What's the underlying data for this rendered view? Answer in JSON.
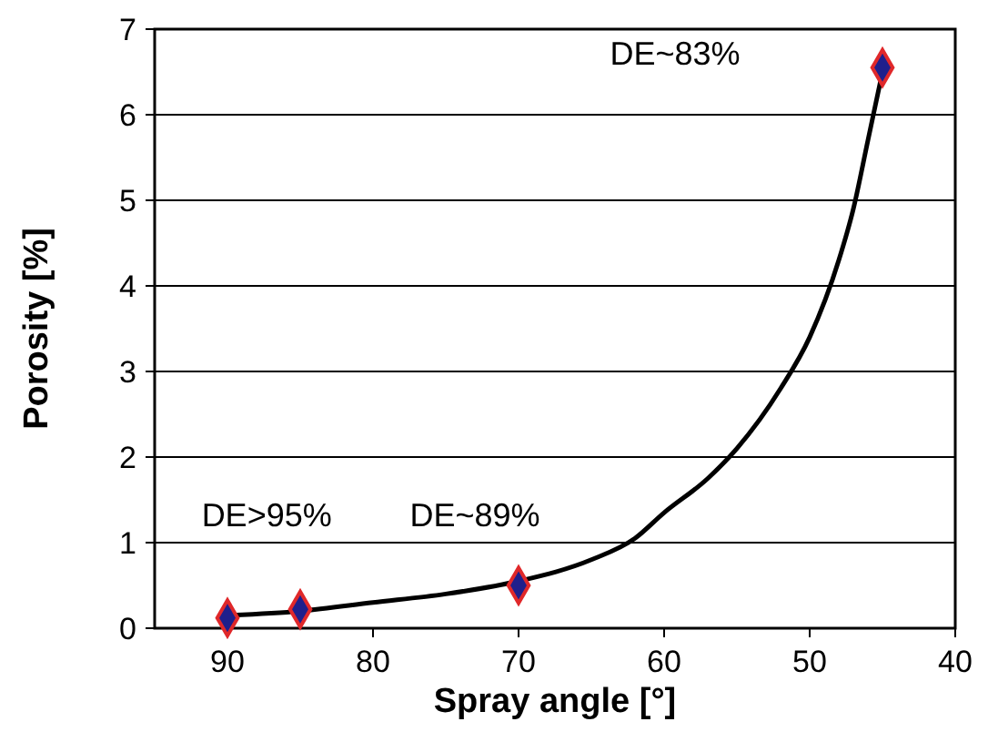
{
  "chart_data": {
    "type": "scatter",
    "xlabel": "Spray angle [°]",
    "ylabel": "Porosity [%]",
    "xlim": [
      95,
      40
    ],
    "xticks": [
      90,
      80,
      70,
      60,
      50,
      40
    ],
    "ylim": [
      0,
      7
    ],
    "yticks": [
      0,
      1,
      2,
      3,
      4,
      5,
      6,
      7
    ],
    "grid": "y",
    "series": [
      {
        "type": "line",
        "color": "#000000",
        "x": [
          90,
          85,
          80,
          75,
          70,
          65,
          62,
          60,
          57,
          55,
          52,
          50,
          48,
          47,
          46,
          45
        ],
        "values": [
          0.15,
          0.2,
          0.3,
          0.4,
          0.55,
          0.8,
          1.05,
          1.35,
          1.75,
          2.1,
          2.8,
          3.4,
          4.3,
          4.9,
          5.7,
          6.5
        ]
      },
      {
        "color": "#1f1f8c",
        "marker": "diamond",
        "x": [
          90,
          85,
          70,
          45
        ],
        "values": [
          0.12,
          0.22,
          0.5,
          6.55
        ]
      }
    ],
    "annotations": [
      "DE>95%",
      "DE~89%",
      "DE~83%"
    ]
  }
}
